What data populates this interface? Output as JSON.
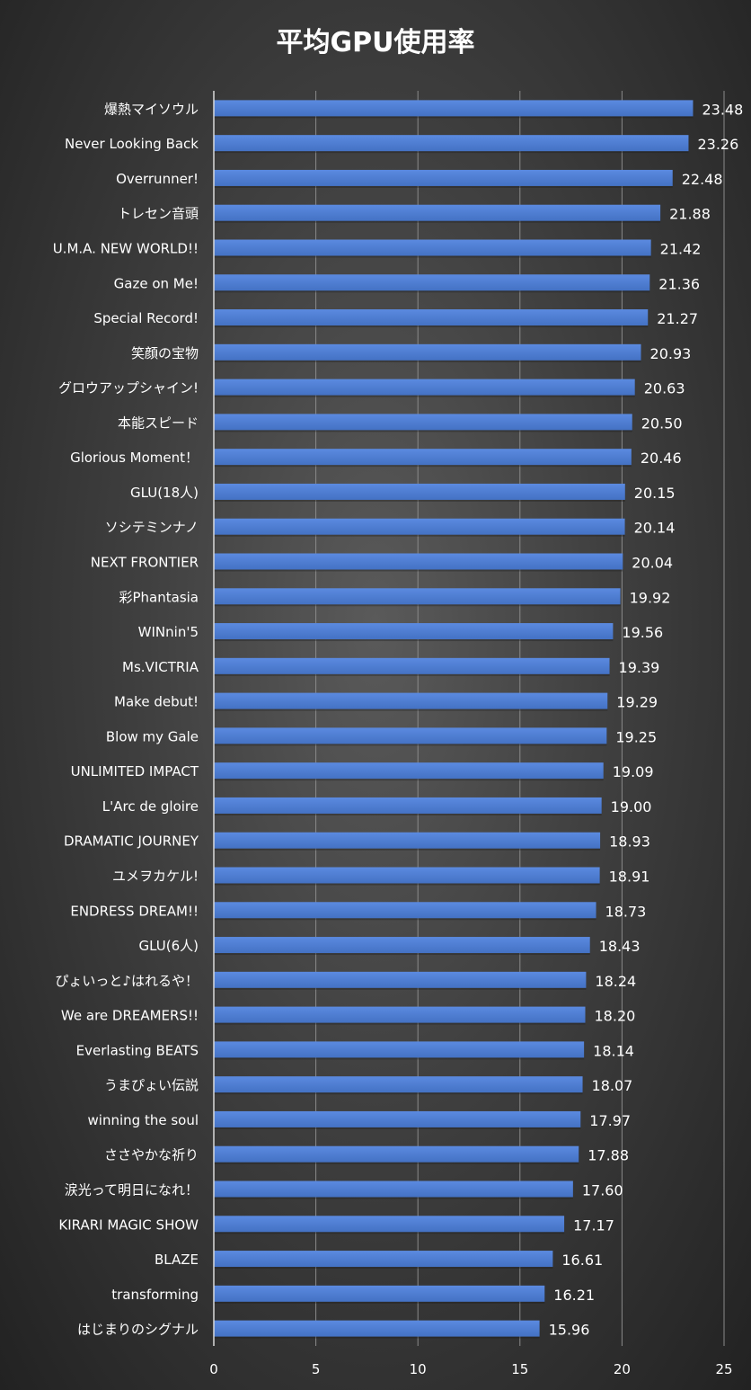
{
  "colors": {
    "bar": "#4472c4",
    "bar_light": "#5b8ae0",
    "text": "#ffffff",
    "grid": "#8a8a8a"
  },
  "chart_data": {
    "type": "bar",
    "orientation": "horizontal",
    "title": "平均GPU使用率",
    "xlabel": "",
    "ylabel": "",
    "xlim": [
      0,
      25
    ],
    "xticks": [
      "0",
      "5",
      "10",
      "15",
      "20",
      "25"
    ],
    "grid": "vertical",
    "legend": "none",
    "categories": [
      "爆熱マイソウル",
      "Never Looking Back",
      "Overrunner!",
      "トレセン音頭",
      "U.M.A. NEW WORLD!!",
      "Gaze on Me!",
      "Special Record!",
      "笑顔の宝物",
      "グロウアップシャイン!",
      "本能スピード",
      "Glorious Moment！",
      "GLU(18人)",
      "ソシテミンナノ",
      "NEXT FRONTIER",
      "彩Phantasia",
      "WINnin'5",
      "Ms.VICTRIA",
      "Make debut!",
      "Blow my Gale",
      "UNLIMITED IMPACT",
      "L'Arc de gloire",
      "DRAMATIC JOURNEY",
      "ユメヲカケル!",
      "ENDRESS DREAM!!",
      "GLU(6人)",
      "ぴょいっと♪はれるや！",
      "We are DREAMERS!!",
      "Everlasting BEATS",
      "うまぴょい伝説",
      "winning the soul",
      "ささやかな祈り",
      "涙光って明日になれ！",
      "KIRARI MAGIC SHOW",
      "BLAZE",
      "transforming",
      "はじまりのシグナル"
    ],
    "values": [
      23.48,
      23.26,
      22.48,
      21.88,
      21.42,
      21.36,
      21.27,
      20.93,
      20.63,
      20.5,
      20.46,
      20.15,
      20.14,
      20.04,
      19.92,
      19.56,
      19.39,
      19.29,
      19.25,
      19.09,
      19.0,
      18.93,
      18.91,
      18.73,
      18.43,
      18.24,
      18.2,
      18.14,
      18.07,
      17.97,
      17.88,
      17.6,
      17.17,
      16.61,
      16.21,
      15.96
    ],
    "data_labels": [
      "23.48",
      "23.26",
      "22.48",
      "21.88",
      "21.42",
      "21.36",
      "21.27",
      "20.93",
      "20.63",
      "20.50",
      "20.46",
      "20.15",
      "20.14",
      "20.04",
      "19.92",
      "19.56",
      "19.39",
      "19.29",
      "19.25",
      "19.09",
      "19.00",
      "18.93",
      "18.91",
      "18.73",
      "18.43",
      "18.24",
      "18.20",
      "18.14",
      "18.07",
      "17.97",
      "17.88",
      "17.60",
      "17.17",
      "16.61",
      "16.21",
      "15.96"
    ]
  }
}
